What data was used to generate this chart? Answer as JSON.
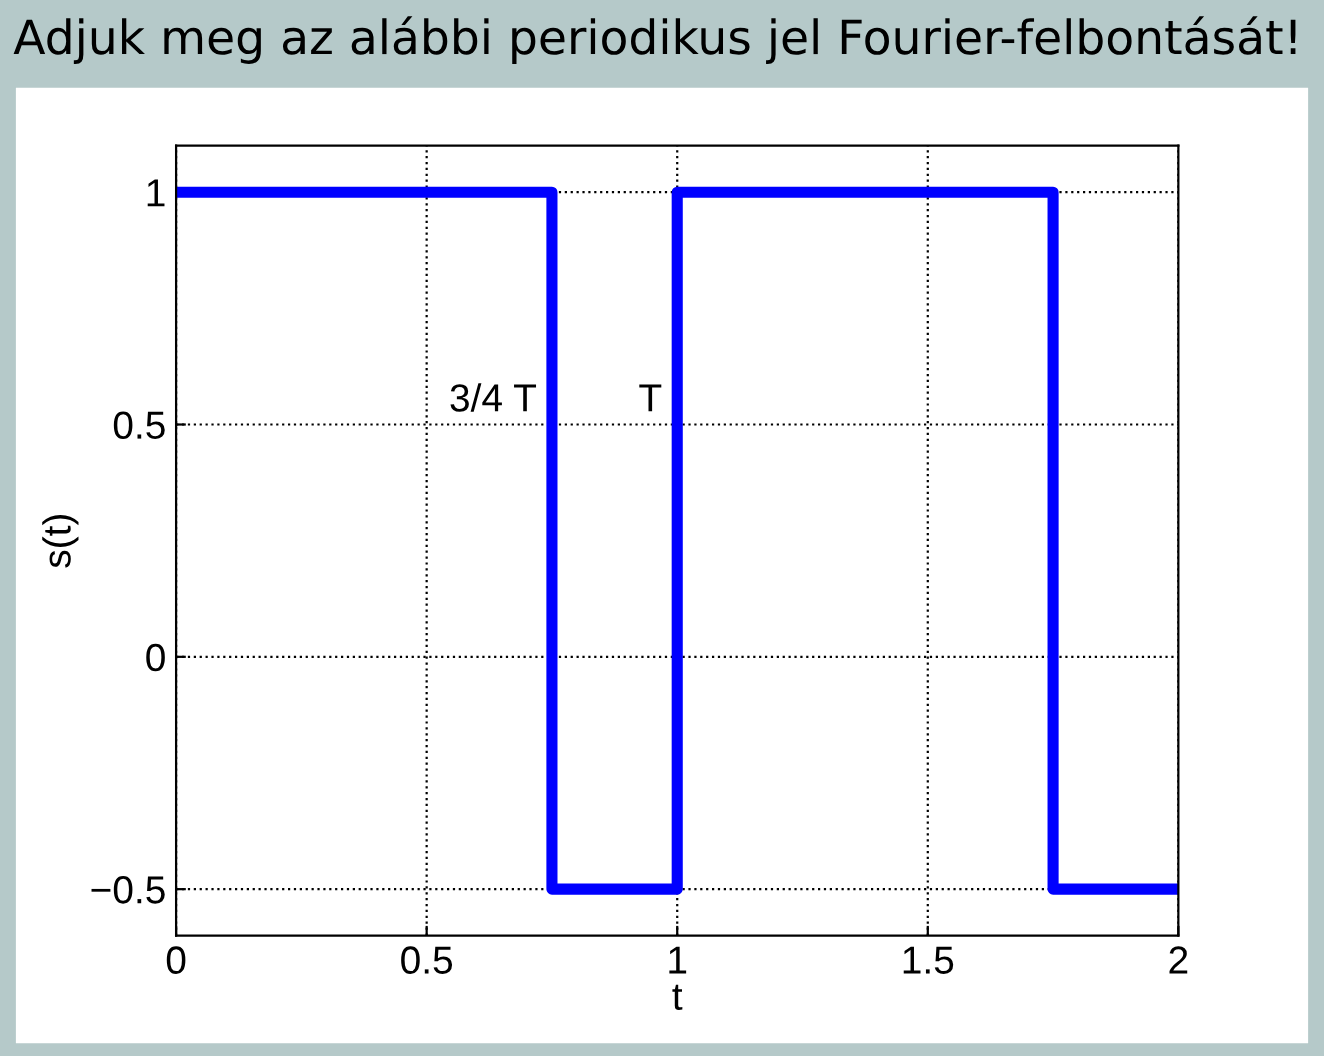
{
  "chart_data": {
    "type": "step",
    "title": "Adjuk meg az alábbi periodikus jel Fourier-felbontását!",
    "xlabel": "t",
    "ylabel": "s(t)",
    "x": [
      0,
      0.75,
      1,
      1.75,
      2
    ],
    "series": [
      {
        "color": "#0000ff",
        "values": [
          1,
          -0.5,
          1,
          -0.5,
          -0.5
        ]
      }
    ],
    "annotations": [
      {
        "text": "3/4 T",
        "x": 0.75,
        "y": 0.55
      },
      {
        "text": "T",
        "x": 1,
        "y": 0.55
      }
    ],
    "xlim": [
      0,
      2
    ],
    "ylim": [
      -0.6,
      1.1
    ],
    "xticks": [
      0,
      0.5,
      1,
      1.5,
      2
    ],
    "yticks": [
      {
        "value": -0.5,
        "label": "−0.5"
      },
      0,
      0.5,
      1
    ],
    "grid": true,
    "line_style": "solid",
    "legend": false
  }
}
